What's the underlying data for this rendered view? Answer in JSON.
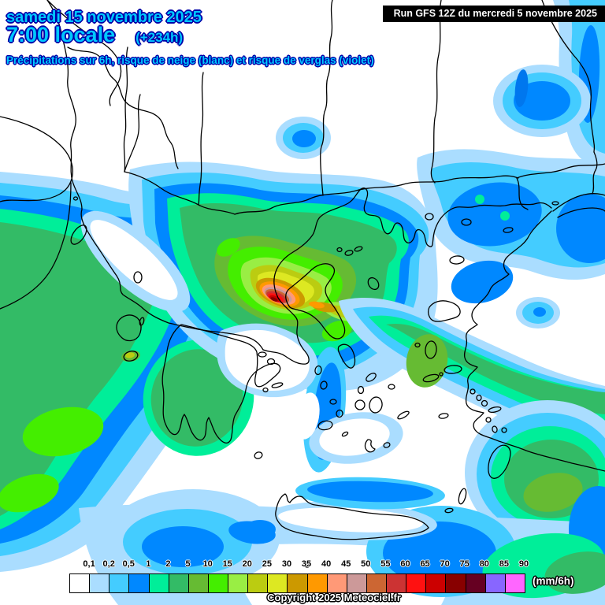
{
  "header": {
    "date": "samedi 15 novembre 2025",
    "time": "7:00 locale",
    "run_offset": "(+234h)",
    "subtitle": "Précipitations sur 6h, risque de neige (blanc) et risque de verglas (violet)",
    "run_label": "Run GFS 12Z du mercredi 5 novembre 2025"
  },
  "legend": {
    "unit_label": "(mm/6h)",
    "tick_labels": [
      "0,1",
      "0,2",
      "0,5",
      "1",
      "2",
      "5",
      "10",
      "15",
      "20",
      "25",
      "30",
      "35",
      "40",
      "45",
      "50",
      "55",
      "60",
      "65",
      "70",
      "75",
      "80",
      "85",
      "90"
    ],
    "colors": [
      "#ffffff",
      "#aaddff",
      "#44ccff",
      "#0088ff",
      "#00ee99",
      "#33bb66",
      "#66bb33",
      "#44ee00",
      "#99ee44",
      "#bbcc11",
      "#dde822",
      "#cc9900",
      "#ff9900",
      "#ff9977",
      "#cc9999",
      "#cc6633",
      "#cc3333",
      "#ff1111",
      "#cc0000",
      "#880000",
      "#660022",
      "#8866ff",
      "#ff66ff"
    ]
  },
  "footer": {
    "copyright": "Copyright 2025 Meteociel.fr"
  },
  "theme": {
    "header_fill": "#00c8ff",
    "header_outline": "#0000a8",
    "run_bg": "#000000",
    "run_fg": "#ffffff",
    "tick_fg": "#000000",
    "tick_halo": "#ffffff",
    "copyright_fg": "#ffffff",
    "copyright_outline": "#000000",
    "coastline": "#000000"
  }
}
